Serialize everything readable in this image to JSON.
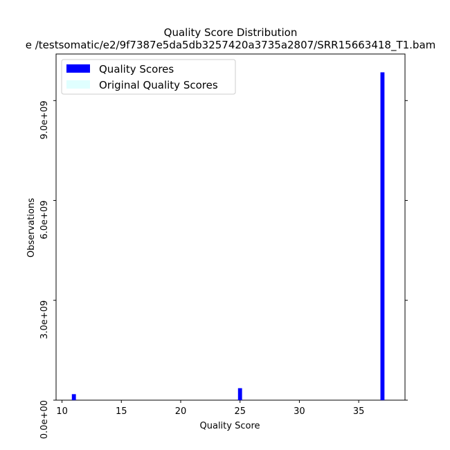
{
  "chart_data": {
    "type": "bar",
    "title": "Quality Score Distribution",
    "subtitle": "e /testsomatic/e2/9f7387e5da5db3257420a3735a2807/SRR15663418_T1.bam",
    "xlabel": "Quality Score",
    "ylabel": "Observations",
    "xlim": [
      9.5,
      38.9
    ],
    "ylim": [
      0,
      10400000000
    ],
    "x_ticks": [
      10,
      15,
      20,
      25,
      30,
      35
    ],
    "y_ticks": [
      0,
      3000000000,
      6000000000,
      9000000000
    ],
    "y_tick_labels": [
      "0.0e+00",
      "3.0e+09",
      "6.0e+09",
      "9.0e+09"
    ],
    "grid": false,
    "legend_position": "top-left",
    "series": [
      {
        "name": "Quality Scores",
        "color": "#0000ff",
        "x": [
          11,
          25,
          37
        ],
        "values": [
          180000000,
          360000000,
          9850000000
        ]
      },
      {
        "name": "Original Quality Scores",
        "color": "#e0ffff",
        "x": [],
        "values": []
      }
    ]
  }
}
